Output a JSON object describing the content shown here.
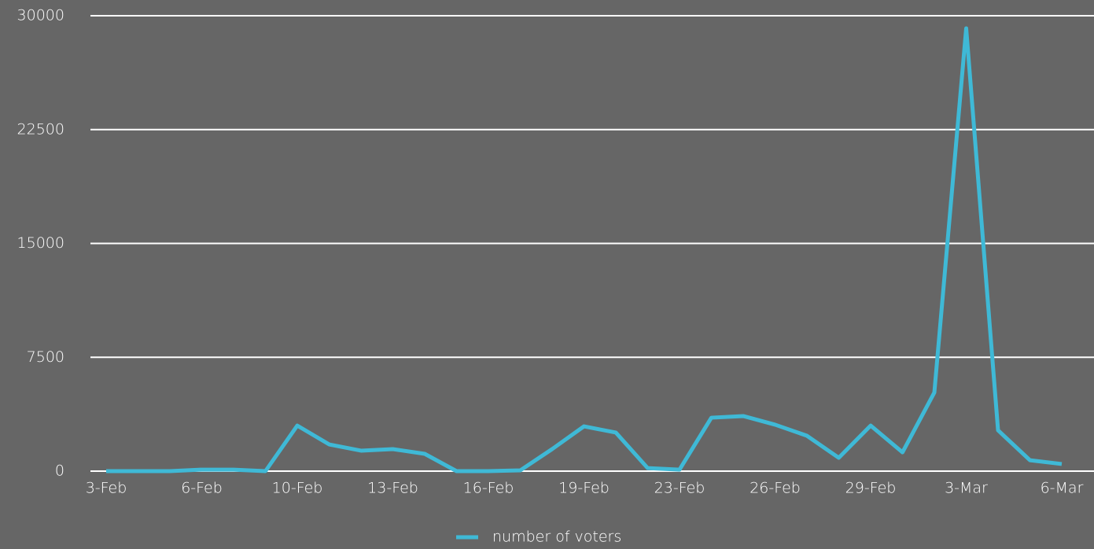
{
  "chart_data": {
    "type": "line",
    "categories": [
      "3-Feb",
      null,
      null,
      "6-Feb",
      null,
      null,
      "10-Feb",
      null,
      null,
      "13-Feb",
      null,
      null,
      "16-Feb",
      null,
      null,
      "19-Feb",
      null,
      null,
      "23-Feb",
      null,
      null,
      "26-Feb",
      null,
      null,
      "29-Feb",
      null,
      null,
      "3-Mar",
      null,
      null,
      "6-Mar"
    ],
    "series": [
      {
        "name": "number of voters",
        "color": "#3fb9d6",
        "values": [
          0,
          0,
          0,
          100,
          100,
          0,
          3000,
          1760,
          1350,
          1450,
          1140,
          0,
          0,
          50,
          1450,
          2950,
          2540,
          200,
          100,
          3520,
          3630,
          3060,
          2330,
          880,
          3000,
          1240,
          5180,
          29170,
          2690,
          720,
          470
        ]
      }
    ],
    "ylim": [
      0,
      30000
    ],
    "yticks": [
      0,
      7500,
      15000,
      22500,
      30000
    ],
    "grid": true,
    "legend": "bottom"
  }
}
